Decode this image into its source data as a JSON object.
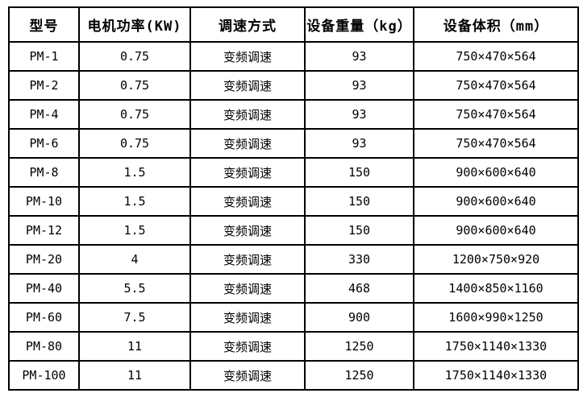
{
  "table": {
    "column_keys": [
      "model",
      "motor-power",
      "speed-control",
      "weight",
      "volume"
    ],
    "headers": [
      "型号",
      "电机功率(KW)",
      "调速方式",
      "设备重量（kg）",
      "设备体积（mm）"
    ],
    "rows": [
      [
        "PM-1",
        "0.75",
        "变频调速",
        "93",
        "750×470×564"
      ],
      [
        "PM-2",
        "0.75",
        "变频调速",
        "93",
        "750×470×564"
      ],
      [
        "PM-4",
        "0.75",
        "变频调速",
        "93",
        "750×470×564"
      ],
      [
        "PM-6",
        "0.75",
        "变频调速",
        "93",
        "750×470×564"
      ],
      [
        "PM-8",
        "1.5",
        "变频调速",
        "150",
        "900×600×640"
      ],
      [
        "PM-10",
        "1.5",
        "变频调速",
        "150",
        "900×600×640"
      ],
      [
        "PM-12",
        "1.5",
        "变频调速",
        "150",
        "900×600×640"
      ],
      [
        "PM-20",
        "4",
        "变频调速",
        "330",
        "1200×750×920"
      ],
      [
        "PM-40",
        "5.5",
        "变频调速",
        "468",
        "1400×850×1160"
      ],
      [
        "PM-60",
        "7.5",
        "变频调速",
        "900",
        "1600×990×1250"
      ],
      [
        "PM-80",
        "11",
        "变频调速",
        "1250",
        "1750×1140×1330"
      ],
      [
        "PM-100",
        "11",
        "变频调速",
        "1250",
        "1750×1140×1330"
      ]
    ]
  },
  "colors": {
    "border": "#000000",
    "text": "#000000",
    "background": "#ffffff"
  }
}
